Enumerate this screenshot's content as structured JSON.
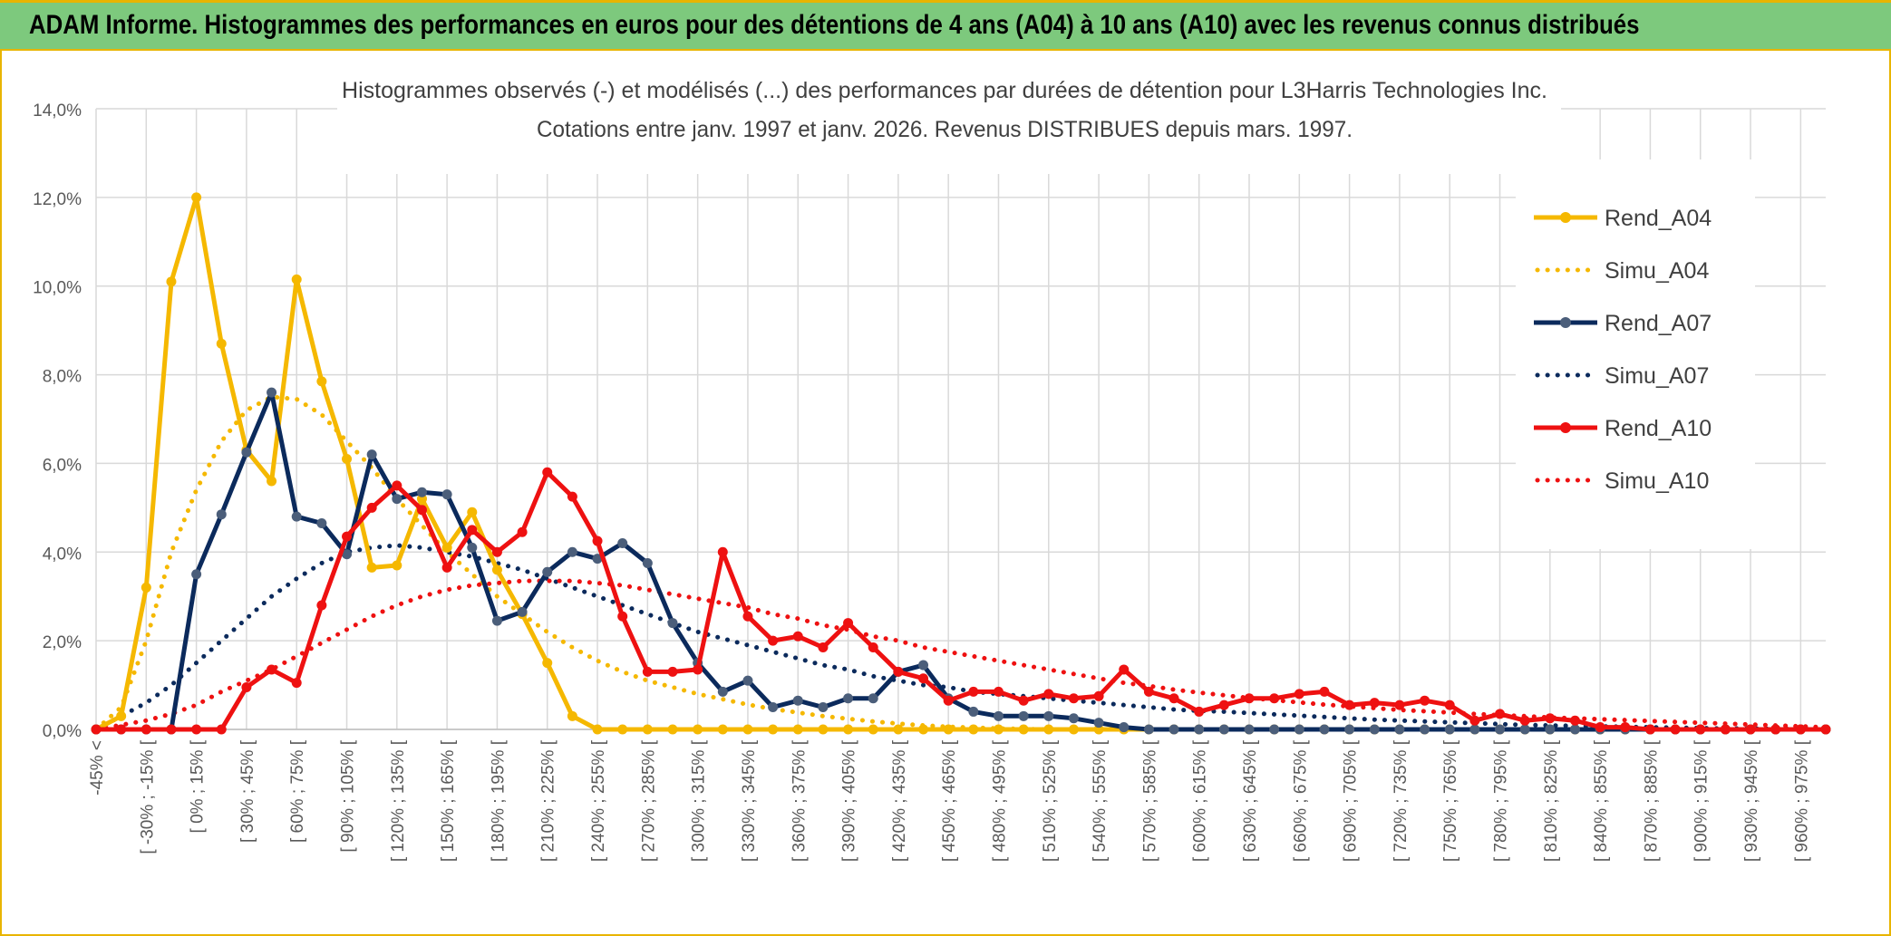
{
  "header": {
    "title": "ADAM Informe. Histogrammes des performances en euros pour des détentions de 4 ans (A04) à 10 ans (A10) avec les revenus connus distribués"
  },
  "chart_data": {
    "type": "line",
    "title": "Histogrammes observés (-) et modélisés (...) des performances par durées de détention pour L3Harris Technologies Inc.",
    "subtitle": "Cotations entre janv. 1997 et janv. 2026. Revenus DISTRIBUES depuis mars. 1997.",
    "xlabel": "",
    "ylabel": "",
    "ylim": [
      0,
      14
    ],
    "yticks": [
      "0,0%",
      "2,0%",
      "4,0%",
      "6,0%",
      "8,0%",
      "10,0%",
      "12,0%",
      "14,0%"
    ],
    "grid": true,
    "legend": "right",
    "x_tick_labels": [
      "-45% <",
      "[ -30% ; -15% [",
      "[ 0% ; 15% [",
      "[ 30% ; 45% [",
      "[ 60% ; 75% [",
      "[ 90% ; 105% [",
      "[ 120% ; 135% [",
      "[ 150% ; 165% [",
      "[ 180% ; 195% [",
      "[ 210% ; 225% [",
      "[ 240% ; 255% [",
      "[ 270% ; 285% [",
      "[ 300% ; 315% [",
      "[ 330% ; 345% [",
      "[ 360% ; 375% [",
      "[ 390% ; 405% [",
      "[ 420% ; 435% [",
      "[ 450% ; 465% [",
      "[ 480% ; 495% [",
      "[ 510% ; 525% [",
      "[ 540% ; 555% [",
      "[ 570% ; 585% [",
      "[ 600% ; 615% [",
      "[ 630% ; 645% [",
      "[ 660% ; 675% [",
      "[ 690% ; 705% [",
      "[ 720% ; 735% [",
      "[ 750% ; 765% [",
      "[ 780% ; 795% [",
      "[ 810% ; 825% [",
      "[ 840% ; 855% [",
      "[ 870% ; 885% [",
      "[ 900% ; 915% [",
      "[ 930% ; 945% [",
      "[ 960% ; 975% ["
    ],
    "series": [
      {
        "name": "Rend_A04",
        "color": "#f5b800",
        "style": "solid-markers",
        "values": [
          0,
          0.3,
          3.2,
          10.1,
          12.0,
          8.7,
          6.3,
          5.6,
          10.15,
          7.85,
          6.1,
          3.65,
          3.7,
          5.2,
          4.1,
          4.9,
          3.6,
          2.6,
          1.5,
          0.3,
          0,
          0,
          0,
          0,
          0,
          0,
          0,
          0,
          0,
          0,
          0,
          0,
          0,
          0,
          0,
          0,
          0,
          0,
          0,
          0,
          0,
          0,
          0,
          0,
          0,
          0,
          0,
          0,
          0,
          0,
          0,
          0,
          0,
          0,
          0,
          0,
          0,
          0,
          0,
          0,
          0,
          0,
          0,
          0,
          0,
          0,
          0,
          0,
          0,
          0
        ]
      },
      {
        "name": "Simu_A04",
        "color": "#f5b800",
        "style": "dotted",
        "values": [
          0,
          0.5,
          2.0,
          4.0,
          5.4,
          6.5,
          7.2,
          7.5,
          7.45,
          7.1,
          6.5,
          5.9,
          5.2,
          4.6,
          4.0,
          3.5,
          3.0,
          2.6,
          2.2,
          1.85,
          1.55,
          1.3,
          1.1,
          0.95,
          0.8,
          0.68,
          0.56,
          0.46,
          0.38,
          0.3,
          0.24,
          0.18,
          0.13,
          0.09,
          0.06,
          0.04,
          0.02,
          0.01,
          0,
          0,
          0,
          0,
          0,
          0,
          0,
          0,
          0,
          0,
          0,
          0,
          0,
          0,
          0,
          0,
          0,
          0,
          0,
          0,
          0,
          0,
          0,
          0,
          0,
          0,
          0,
          0,
          0,
          0,
          0,
          0
        ]
      },
      {
        "name": "Rend_A07",
        "color": "#0b2a5c",
        "style": "solid-markers",
        "values": [
          0,
          0,
          0,
          0,
          3.5,
          4.85,
          6.25,
          7.6,
          4.8,
          4.65,
          3.95,
          6.2,
          5.2,
          5.35,
          5.3,
          4.1,
          2.45,
          2.65,
          3.55,
          4.0,
          3.85,
          4.2,
          3.75,
          2.4,
          1.5,
          0.85,
          1.1,
          0.5,
          0.65,
          0.5,
          0.7,
          0.7,
          1.3,
          1.45,
          0.7,
          0.4,
          0.3,
          0.3,
          0.3,
          0.25,
          0.15,
          0.05,
          0,
          0,
          0,
          0,
          0,
          0,
          0,
          0,
          0,
          0,
          0,
          0,
          0,
          0,
          0,
          0,
          0,
          0,
          0,
          0,
          0,
          0,
          0,
          0,
          0,
          0,
          0,
          0
        ]
      },
      {
        "name": "Simu_A07",
        "color": "#0b2a5c",
        "style": "dotted",
        "values": [
          0,
          0.3,
          0.6,
          1.0,
          1.5,
          2.0,
          2.5,
          3.0,
          3.4,
          3.75,
          4.0,
          4.1,
          4.15,
          4.1,
          4.0,
          3.9,
          3.75,
          3.6,
          3.4,
          3.2,
          3.0,
          2.8,
          2.6,
          2.4,
          2.2,
          2.05,
          1.9,
          1.75,
          1.6,
          1.45,
          1.35,
          1.2,
          1.1,
          1.0,
          0.95,
          0.85,
          0.8,
          0.75,
          0.7,
          0.65,
          0.6,
          0.55,
          0.5,
          0.45,
          0.42,
          0.4,
          0.37,
          0.34,
          0.31,
          0.28,
          0.25,
          0.22,
          0.2,
          0.18,
          0.16,
          0.14,
          0.12,
          0.1,
          0.09,
          0.08,
          0.07,
          0.06,
          0.05,
          0.04,
          0.03,
          0.02,
          0.02,
          0.01,
          0.01,
          0
        ]
      },
      {
        "name": "Rend_A10",
        "color": "#ee1111",
        "style": "solid-markers",
        "values": [
          0,
          0,
          0,
          0,
          0,
          0,
          0.95,
          1.35,
          1.05,
          2.8,
          4.35,
          5.0,
          5.5,
          4.95,
          3.65,
          4.5,
          4.0,
          4.45,
          5.8,
          5.25,
          4.25,
          2.55,
          1.3,
          1.3,
          1.35,
          4.0,
          2.55,
          2.0,
          2.1,
          1.85,
          2.4,
          1.85,
          1.3,
          1.15,
          0.65,
          0.85,
          0.85,
          0.65,
          0.8,
          0.7,
          0.75,
          1.35,
          0.85,
          0.7,
          0.4,
          0.55,
          0.7,
          0.7,
          0.8,
          0.85,
          0.55,
          0.6,
          0.55,
          0.65,
          0.55,
          0.2,
          0.35,
          0.2,
          0.25,
          0.2,
          0.05,
          0.05,
          0,
          0,
          0,
          0,
          0,
          0,
          0,
          0
        ]
      },
      {
        "name": "Simu_A10",
        "color": "#ee1111",
        "style": "dotted",
        "values": [
          0,
          0.1,
          0.2,
          0.35,
          0.55,
          0.85,
          1.1,
          1.35,
          1.65,
          1.95,
          2.25,
          2.55,
          2.8,
          3.0,
          3.15,
          3.25,
          3.3,
          3.35,
          3.35,
          3.35,
          3.3,
          3.25,
          3.15,
          3.05,
          2.95,
          2.85,
          2.75,
          2.6,
          2.5,
          2.35,
          2.25,
          2.1,
          2.0,
          1.85,
          1.75,
          1.65,
          1.55,
          1.45,
          1.35,
          1.25,
          1.15,
          1.05,
          0.98,
          0.9,
          0.83,
          0.77,
          0.71,
          0.66,
          0.61,
          0.56,
          0.52,
          0.48,
          0.44,
          0.41,
          0.38,
          0.35,
          0.32,
          0.3,
          0.27,
          0.25,
          0.23,
          0.21,
          0.19,
          0.17,
          0.15,
          0.13,
          0.11,
          0.09,
          0.07,
          0.05
        ]
      }
    ]
  }
}
